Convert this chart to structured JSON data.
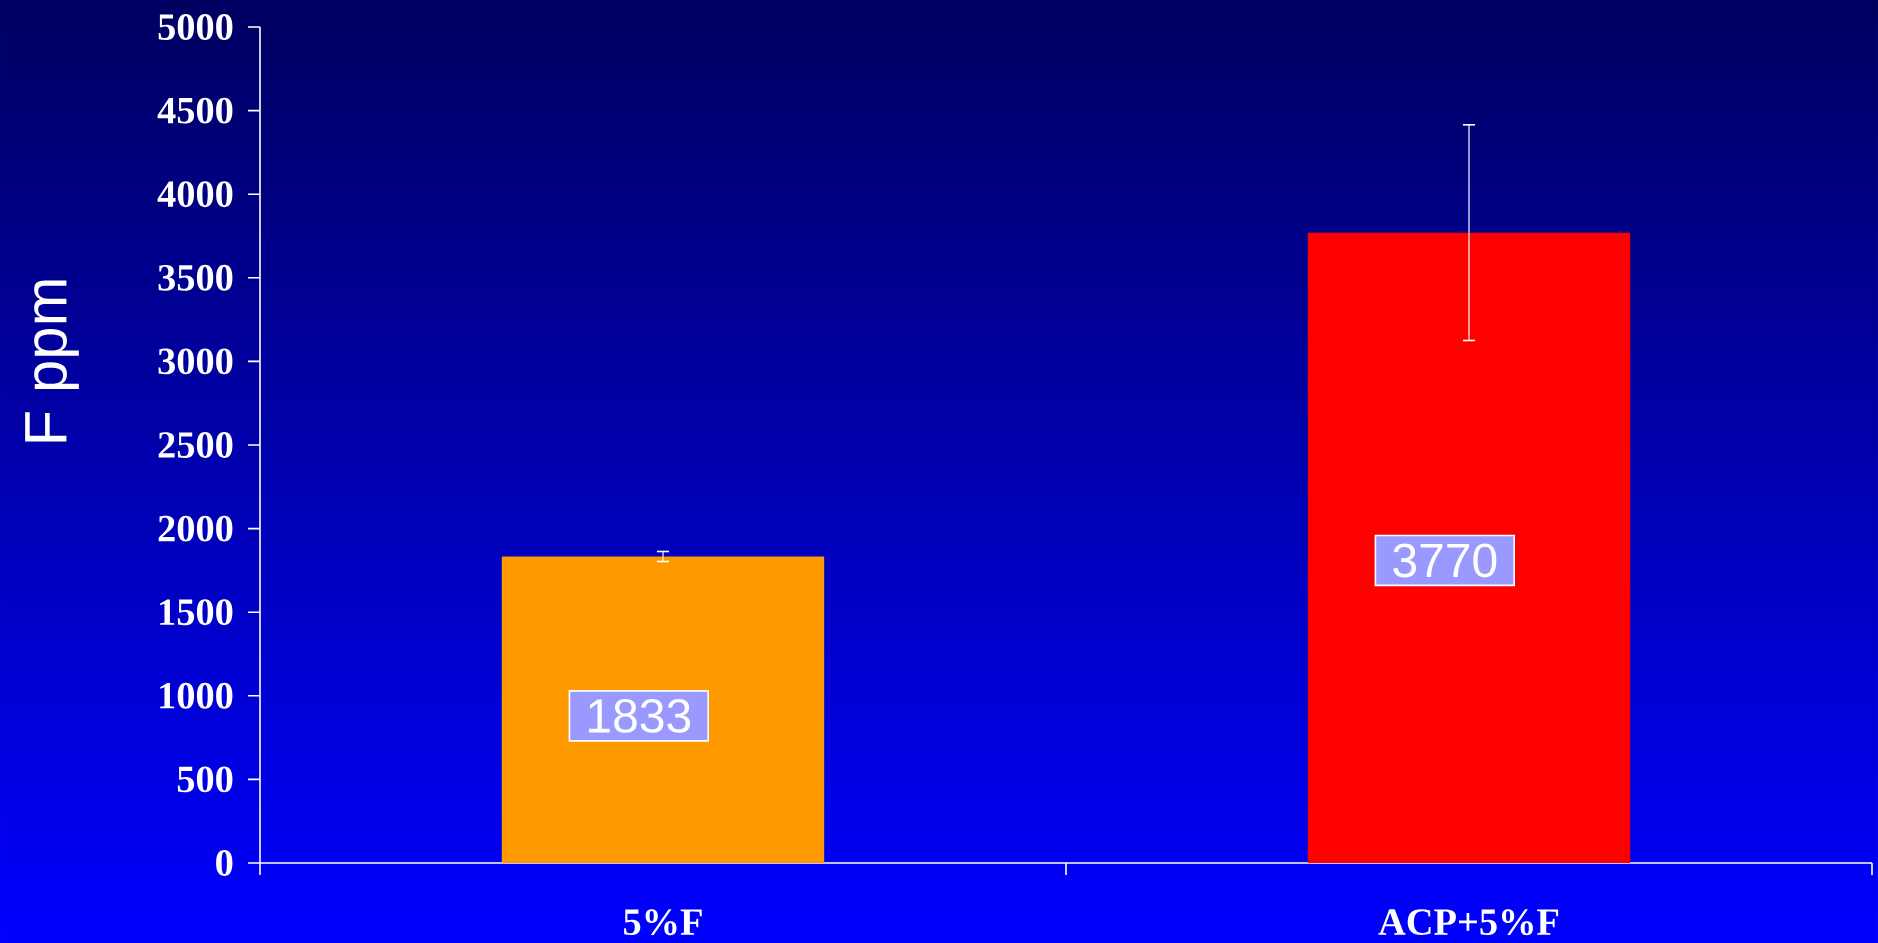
{
  "chart_data": {
    "type": "bar",
    "ylabel": "F ppm",
    "categories": [
      "5%F",
      "ACP+5%F"
    ],
    "values": [
      1833,
      3770
    ],
    "colors": [
      "#ff9900",
      "#ff0000"
    ],
    "errors": [
      30,
      645
    ],
    "value_labels": [
      "1833",
      "3770"
    ],
    "ylim": [
      0,
      5000
    ],
    "yticks": [
      0,
      500,
      1000,
      1500,
      2000,
      2500,
      3000,
      3500,
      4000,
      4500,
      5000
    ],
    "grid": false
  }
}
